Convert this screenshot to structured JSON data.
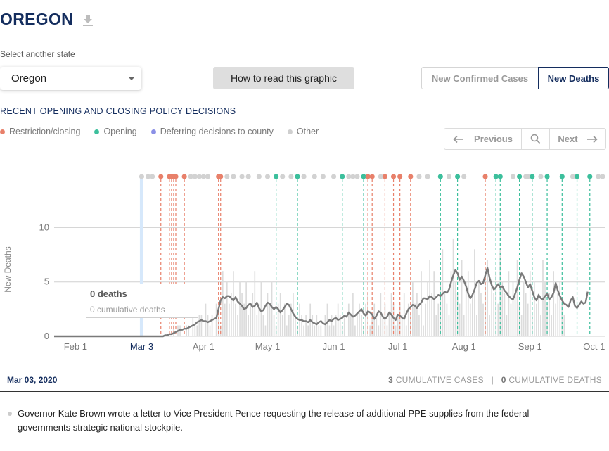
{
  "header": {
    "state_name": "OREGON",
    "download_icon": "download-icon"
  },
  "selector": {
    "label": "Select another state",
    "value": "Oregon"
  },
  "howto": {
    "label": "How to read this graphic"
  },
  "toggle": {
    "cases_label": "New Confirmed Cases",
    "deaths_label": "New Deaths",
    "active": "deaths"
  },
  "policy": {
    "title": "RECENT OPENING AND CLOSING POLICY DECISIONS",
    "legend": [
      {
        "label": "Restriction/closing",
        "color": "#e8806a"
      },
      {
        "label": "Opening",
        "color": "#3cbf9c"
      },
      {
        "label": "Deferring decisions to county",
        "color": "#8b90e6"
      },
      {
        "label": "Other",
        "color": "#cfcfcf"
      }
    ]
  },
  "pager": {
    "prev_label": "Previous",
    "next_label": "Next",
    "search_icon": "search-icon"
  },
  "tooltip": {
    "deaths": "0 deaths",
    "cumulative": "0 cumulative deaths"
  },
  "info": {
    "date": "Mar 03, 2020",
    "cumulative_cases_value": "3",
    "cumulative_cases_label": "CUMULATIVE CASES",
    "separator": "|",
    "cumulative_deaths_value": "0",
    "cumulative_deaths_label": "CUMULATIVE DEATHS"
  },
  "note": "Governor Kate Brown wrote a letter to Vice President Pence requesting the release of additional PPE supplies from the federal governments strategic national stockpile.",
  "chart_data": {
    "type": "bar",
    "title": "",
    "ylabel": "New Deaths",
    "xlabel": "",
    "x_start": "2020-01-22",
    "x_end": "2020-10-06",
    "ylim": [
      0,
      13
    ],
    "yticks": [
      0,
      5,
      10
    ],
    "xticks": [
      {
        "date": "2020-02-01",
        "label": "Feb 1"
      },
      {
        "date": "2020-03-03",
        "label": "Mar 3",
        "selected": true
      },
      {
        "date": "2020-04-01",
        "label": "Apr 1"
      },
      {
        "date": "2020-05-01",
        "label": "May 1"
      },
      {
        "date": "2020-06-01",
        "label": "Jun 1"
      },
      {
        "date": "2020-07-01",
        "label": "Jul 1"
      },
      {
        "date": "2020-08-01",
        "label": "Aug 1"
      },
      {
        "date": "2020-09-01",
        "label": "Sep 1"
      },
      {
        "date": "2020-10-01",
        "label": "Oct 1"
      }
    ],
    "selected_date": "2020-03-03",
    "series": [
      {
        "label": "daily",
        "values": [
          0,
          0,
          0,
          0,
          0,
          0,
          0,
          0,
          0,
          0,
          0,
          0,
          0,
          0,
          0,
          0,
          0,
          0,
          0,
          0,
          0,
          0,
          0,
          0,
          0,
          0,
          0,
          0,
          0,
          0,
          0,
          0,
          0,
          0,
          0,
          0,
          0,
          0,
          0,
          0,
          0,
          0,
          0,
          0,
          0,
          0,
          0,
          0,
          0,
          0,
          0,
          0,
          0,
          0,
          0,
          0,
          1,
          0,
          1,
          1,
          0,
          0,
          1,
          1,
          0,
          2,
          1,
          1,
          2,
          2,
          0,
          3,
          2,
          1,
          2,
          0,
          3,
          2,
          1,
          6,
          3,
          5,
          3,
          4,
          6,
          3,
          2,
          5,
          4,
          3,
          5,
          2,
          3,
          4,
          6,
          2,
          3,
          5,
          2,
          1,
          4,
          3,
          5,
          2,
          1,
          3,
          4,
          2,
          3,
          1,
          2,
          3,
          4,
          2,
          1,
          3,
          2,
          1,
          2,
          1,
          3,
          2,
          1,
          2,
          1,
          1,
          0,
          2,
          3,
          1,
          2,
          1,
          2,
          3,
          2,
          1,
          2,
          0,
          3,
          2,
          4,
          1,
          2,
          3,
          2,
          1,
          3,
          4,
          1,
          2,
          3,
          2,
          1,
          4,
          2,
          3,
          1,
          2,
          4,
          3,
          1,
          2,
          3,
          2,
          4,
          1,
          3,
          2,
          5,
          3,
          4,
          2,
          6,
          1,
          3,
          5,
          7,
          4,
          6,
          2,
          3,
          5,
          8,
          4,
          3,
          2,
          6,
          9,
          5,
          4,
          3,
          7,
          2,
          5,
          6,
          3,
          4,
          8,
          2,
          5,
          4,
          3,
          6,
          7,
          2,
          5,
          4,
          6,
          3,
          8,
          5,
          4,
          2,
          6,
          3,
          5,
          4,
          7,
          3,
          2,
          5,
          4,
          3,
          6,
          2,
          5,
          3,
          4,
          2,
          7,
          5,
          3,
          4,
          2,
          6,
          3,
          4,
          5,
          3,
          2
        ]
      },
      {
        "label": "7-day average",
        "values": [
          0,
          0,
          0,
          0,
          0,
          0,
          0,
          0,
          0,
          0,
          0,
          0,
          0,
          0,
          0,
          0,
          0,
          0,
          0,
          0,
          0,
          0,
          0,
          0,
          0,
          0,
          0,
          0,
          0,
          0,
          0,
          0,
          0,
          0,
          0,
          0,
          0,
          0,
          0,
          0,
          0,
          0,
          0,
          0,
          0,
          0,
          0,
          0,
          0,
          0,
          0,
          0,
          0.1,
          0.1,
          0.2,
          0.2,
          0.3,
          0.4,
          0.5,
          0.6,
          0.6,
          0.7,
          0.7,
          0.8,
          0.9,
          1.0,
          1.1,
          1.3,
          1.4,
          1.5,
          1.4,
          1.4,
          1.3,
          1.4,
          1.5,
          1.6,
          1.7,
          2.5,
          3.3,
          3.6,
          3.5,
          3.7,
          3.7,
          3.5,
          3.3,
          3.6,
          3.2,
          3.0,
          2.8,
          2.5,
          2.6,
          2.9,
          3.0,
          2.7,
          2.8,
          3.1,
          2.6,
          2.3,
          2.4,
          2.8,
          3.1,
          3.0,
          2.7,
          2.5,
          2.7,
          2.5,
          2.2,
          2.4,
          2.7,
          3.0,
          2.9,
          2.5,
          2.1,
          1.8,
          1.6,
          1.5,
          1.5,
          1.4,
          1.4,
          1.3,
          1.5,
          1.3,
          1.2,
          1.1,
          1.3,
          1.4,
          1.2,
          1.1,
          1.3,
          1.5,
          1.4,
          1.6,
          1.7,
          1.5,
          1.6,
          1.7,
          1.9,
          1.8,
          2.2,
          2.0,
          1.8,
          1.9,
          2.1,
          2.3,
          2.5,
          2.1,
          1.9,
          2.3,
          2.2,
          2.0,
          1.6,
          1.9,
          2.3,
          2.2,
          1.8,
          1.6,
          1.8,
          2.2,
          2.0,
          1.7,
          1.5,
          2.0,
          1.9,
          1.7,
          1.6,
          2.1,
          2.5,
          2.7,
          2.9,
          2.8,
          2.6,
          2.9,
          3.1,
          3.5,
          3.5,
          3.4,
          3.7,
          3.6,
          3.4,
          3.6,
          3.8,
          3.7,
          3.9,
          4.1,
          4.0,
          4.3,
          5.0,
          5.6,
          6.1,
          5.8,
          5.2,
          5.5,
          5.1,
          4.6,
          3.9,
          3.5,
          3.8,
          4.3,
          4.9,
          5.1,
          4.8,
          4.9,
          5.6,
          6.3,
          5.4,
          4.7,
          4.3,
          4.5,
          4.8,
          4.5,
          4.6,
          4.2,
          4.0,
          3.7,
          3.5,
          3.4,
          3.9,
          4.5,
          5.2,
          5.8,
          5.5,
          5.0,
          4.5,
          4.8,
          4.2,
          3.6,
          3.3,
          3.8,
          3.5,
          3.4,
          3.7,
          3.9,
          3.4,
          3.6,
          4.0,
          4.9,
          4.2,
          3.7,
          3.3,
          3.0,
          2.9,
          2.7,
          3.3,
          3.6,
          2.8,
          2.6,
          2.9,
          3.2,
          3.0,
          3.1,
          4.1
        ]
      }
    ],
    "policy_events": [
      {
        "date": "2020-03-03",
        "type": "other",
        "line": false
      },
      {
        "date": "2020-03-06",
        "type": "other",
        "line": false
      },
      {
        "date": "2020-03-08",
        "type": "other",
        "line": false
      },
      {
        "date": "2020-03-12",
        "type": "restriction",
        "line": true
      },
      {
        "date": "2020-03-16",
        "type": "restriction",
        "line": true
      },
      {
        "date": "2020-03-17",
        "type": "restriction",
        "line": true
      },
      {
        "date": "2020-03-18",
        "type": "restriction",
        "line": true
      },
      {
        "date": "2020-03-19",
        "type": "restriction",
        "line": true
      },
      {
        "date": "2020-03-23",
        "type": "restriction",
        "line": true
      },
      {
        "date": "2020-03-26",
        "type": "other",
        "line": false
      },
      {
        "date": "2020-03-28",
        "type": "other",
        "line": false
      },
      {
        "date": "2020-03-30",
        "type": "other",
        "line": false
      },
      {
        "date": "2020-04-01",
        "type": "other",
        "line": false
      },
      {
        "date": "2020-04-03",
        "type": "other",
        "line": false
      },
      {
        "date": "2020-04-08",
        "type": "restriction",
        "line": true
      },
      {
        "date": "2020-04-09",
        "type": "restriction",
        "line": true
      },
      {
        "date": "2020-04-12",
        "type": "other",
        "line": false
      },
      {
        "date": "2020-04-15",
        "type": "other",
        "line": false
      },
      {
        "date": "2020-04-19",
        "type": "other",
        "line": false
      },
      {
        "date": "2020-04-22",
        "type": "other",
        "line": false
      },
      {
        "date": "2020-04-27",
        "type": "other",
        "line": false
      },
      {
        "date": "2020-05-01",
        "type": "other",
        "line": false
      },
      {
        "date": "2020-05-05",
        "type": "opening",
        "line": true
      },
      {
        "date": "2020-05-08",
        "type": "other",
        "line": false
      },
      {
        "date": "2020-05-12",
        "type": "other",
        "line": false
      },
      {
        "date": "2020-05-15",
        "type": "opening",
        "line": true
      },
      {
        "date": "2020-05-18",
        "type": "other",
        "line": false
      },
      {
        "date": "2020-05-23",
        "type": "other",
        "line": false
      },
      {
        "date": "2020-05-27",
        "type": "other",
        "line": false
      },
      {
        "date": "2020-06-01",
        "type": "other",
        "line": false
      },
      {
        "date": "2020-06-05",
        "type": "opening",
        "line": true
      },
      {
        "date": "2020-06-08",
        "type": "other",
        "line": false
      },
      {
        "date": "2020-06-10",
        "type": "other",
        "line": false
      },
      {
        "date": "2020-06-12",
        "type": "other",
        "line": false
      },
      {
        "date": "2020-06-15",
        "type": "opening",
        "line": true
      },
      {
        "date": "2020-06-17",
        "type": "restriction",
        "line": true
      },
      {
        "date": "2020-06-19",
        "type": "restriction",
        "line": true
      },
      {
        "date": "2020-06-23",
        "type": "other",
        "line": false
      },
      {
        "date": "2020-06-25",
        "type": "restriction",
        "line": true
      },
      {
        "date": "2020-06-29",
        "type": "restriction",
        "line": true
      },
      {
        "date": "2020-07-02",
        "type": "restriction",
        "line": true
      },
      {
        "date": "2020-07-07",
        "type": "restriction",
        "line": true
      },
      {
        "date": "2020-07-11",
        "type": "other",
        "line": false
      },
      {
        "date": "2020-07-15",
        "type": "other",
        "line": false
      },
      {
        "date": "2020-07-21",
        "type": "opening",
        "line": true
      },
      {
        "date": "2020-07-25",
        "type": "other",
        "line": false
      },
      {
        "date": "2020-07-29",
        "type": "opening",
        "line": true
      },
      {
        "date": "2020-08-01",
        "type": "other",
        "line": false
      },
      {
        "date": "2020-08-11",
        "type": "restriction",
        "line": true
      },
      {
        "date": "2020-08-16",
        "type": "opening",
        "line": true
      },
      {
        "date": "2020-08-18",
        "type": "opening",
        "line": true
      },
      {
        "date": "2020-08-24",
        "type": "other",
        "line": false
      },
      {
        "date": "2020-08-27",
        "type": "opening",
        "line": true
      },
      {
        "date": "2020-08-30",
        "type": "other",
        "line": false
      },
      {
        "date": "2020-08-31",
        "type": "other",
        "line": false
      },
      {
        "date": "2020-09-02",
        "type": "opening",
        "line": true
      },
      {
        "date": "2020-09-06",
        "type": "other",
        "line": false
      },
      {
        "date": "2020-09-09",
        "type": "opening",
        "line": true
      },
      {
        "date": "2020-09-16",
        "type": "opening",
        "line": true
      },
      {
        "date": "2020-09-21",
        "type": "other",
        "line": false
      },
      {
        "date": "2020-09-23",
        "type": "opening",
        "line": true
      },
      {
        "date": "2020-09-29",
        "type": "opening",
        "line": true
      },
      {
        "date": "2020-10-03",
        "type": "other",
        "line": false
      },
      {
        "date": "2020-10-05",
        "type": "other",
        "line": false
      }
    ]
  }
}
